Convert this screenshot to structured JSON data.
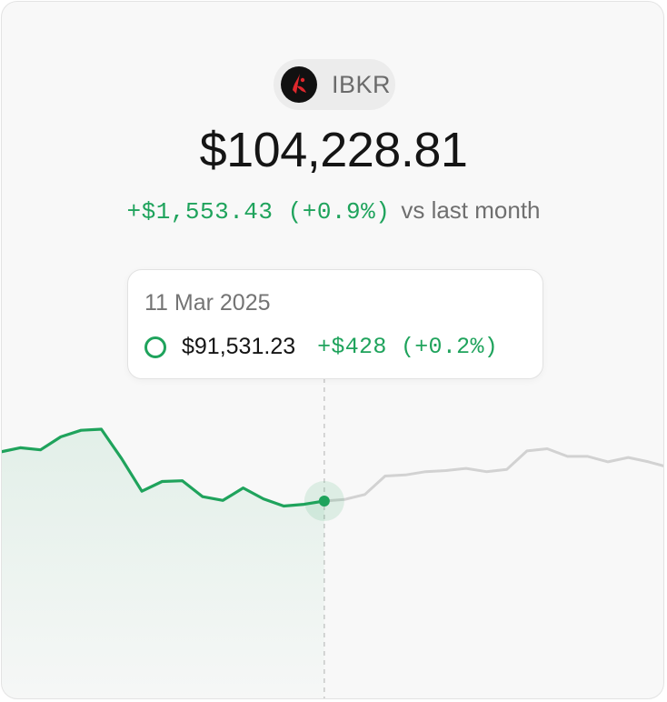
{
  "account": {
    "ticker": "IBKR",
    "logo_icon": "ibkr-logo-icon",
    "total_value": "$104,228.81",
    "change_amount": "+$1,553.43 (+0.9%)",
    "change_suffix": "vs last month"
  },
  "tooltip": {
    "date": "11 Mar 2025",
    "value": "$91,531.23",
    "change": "+$428 (+0.2%)",
    "marker_icon": "ring-icon"
  },
  "colors": {
    "positive": "#1fa35c",
    "future_line": "#d2d2d2",
    "card_background": "#f8f8f8",
    "logo_red": "#e0282d"
  },
  "chart_data": {
    "type": "line",
    "title": "",
    "xlabel": "",
    "ylabel": "",
    "selected_index": 16,
    "values": [
      100,
      102,
      101,
      107,
      110,
      110.5,
      97,
      82,
      86.5,
      86.8,
      79.5,
      77.8,
      83.5,
      78.5,
      75.2,
      76,
      77.5,
      78.2,
      80.5,
      89,
      89.5,
      91,
      91.5,
      92.5,
      91,
      92,
      100.5,
      101.5,
      98,
      98,
      95.5,
      97.5,
      95.5,
      93
    ],
    "series": [
      {
        "name": "",
        "segment": "past",
        "color": "#1fa35c"
      },
      {
        "name": "",
        "segment": "future",
        "color": "#d2d2d2"
      }
    ],
    "grid": false,
    "legend": "none"
  }
}
